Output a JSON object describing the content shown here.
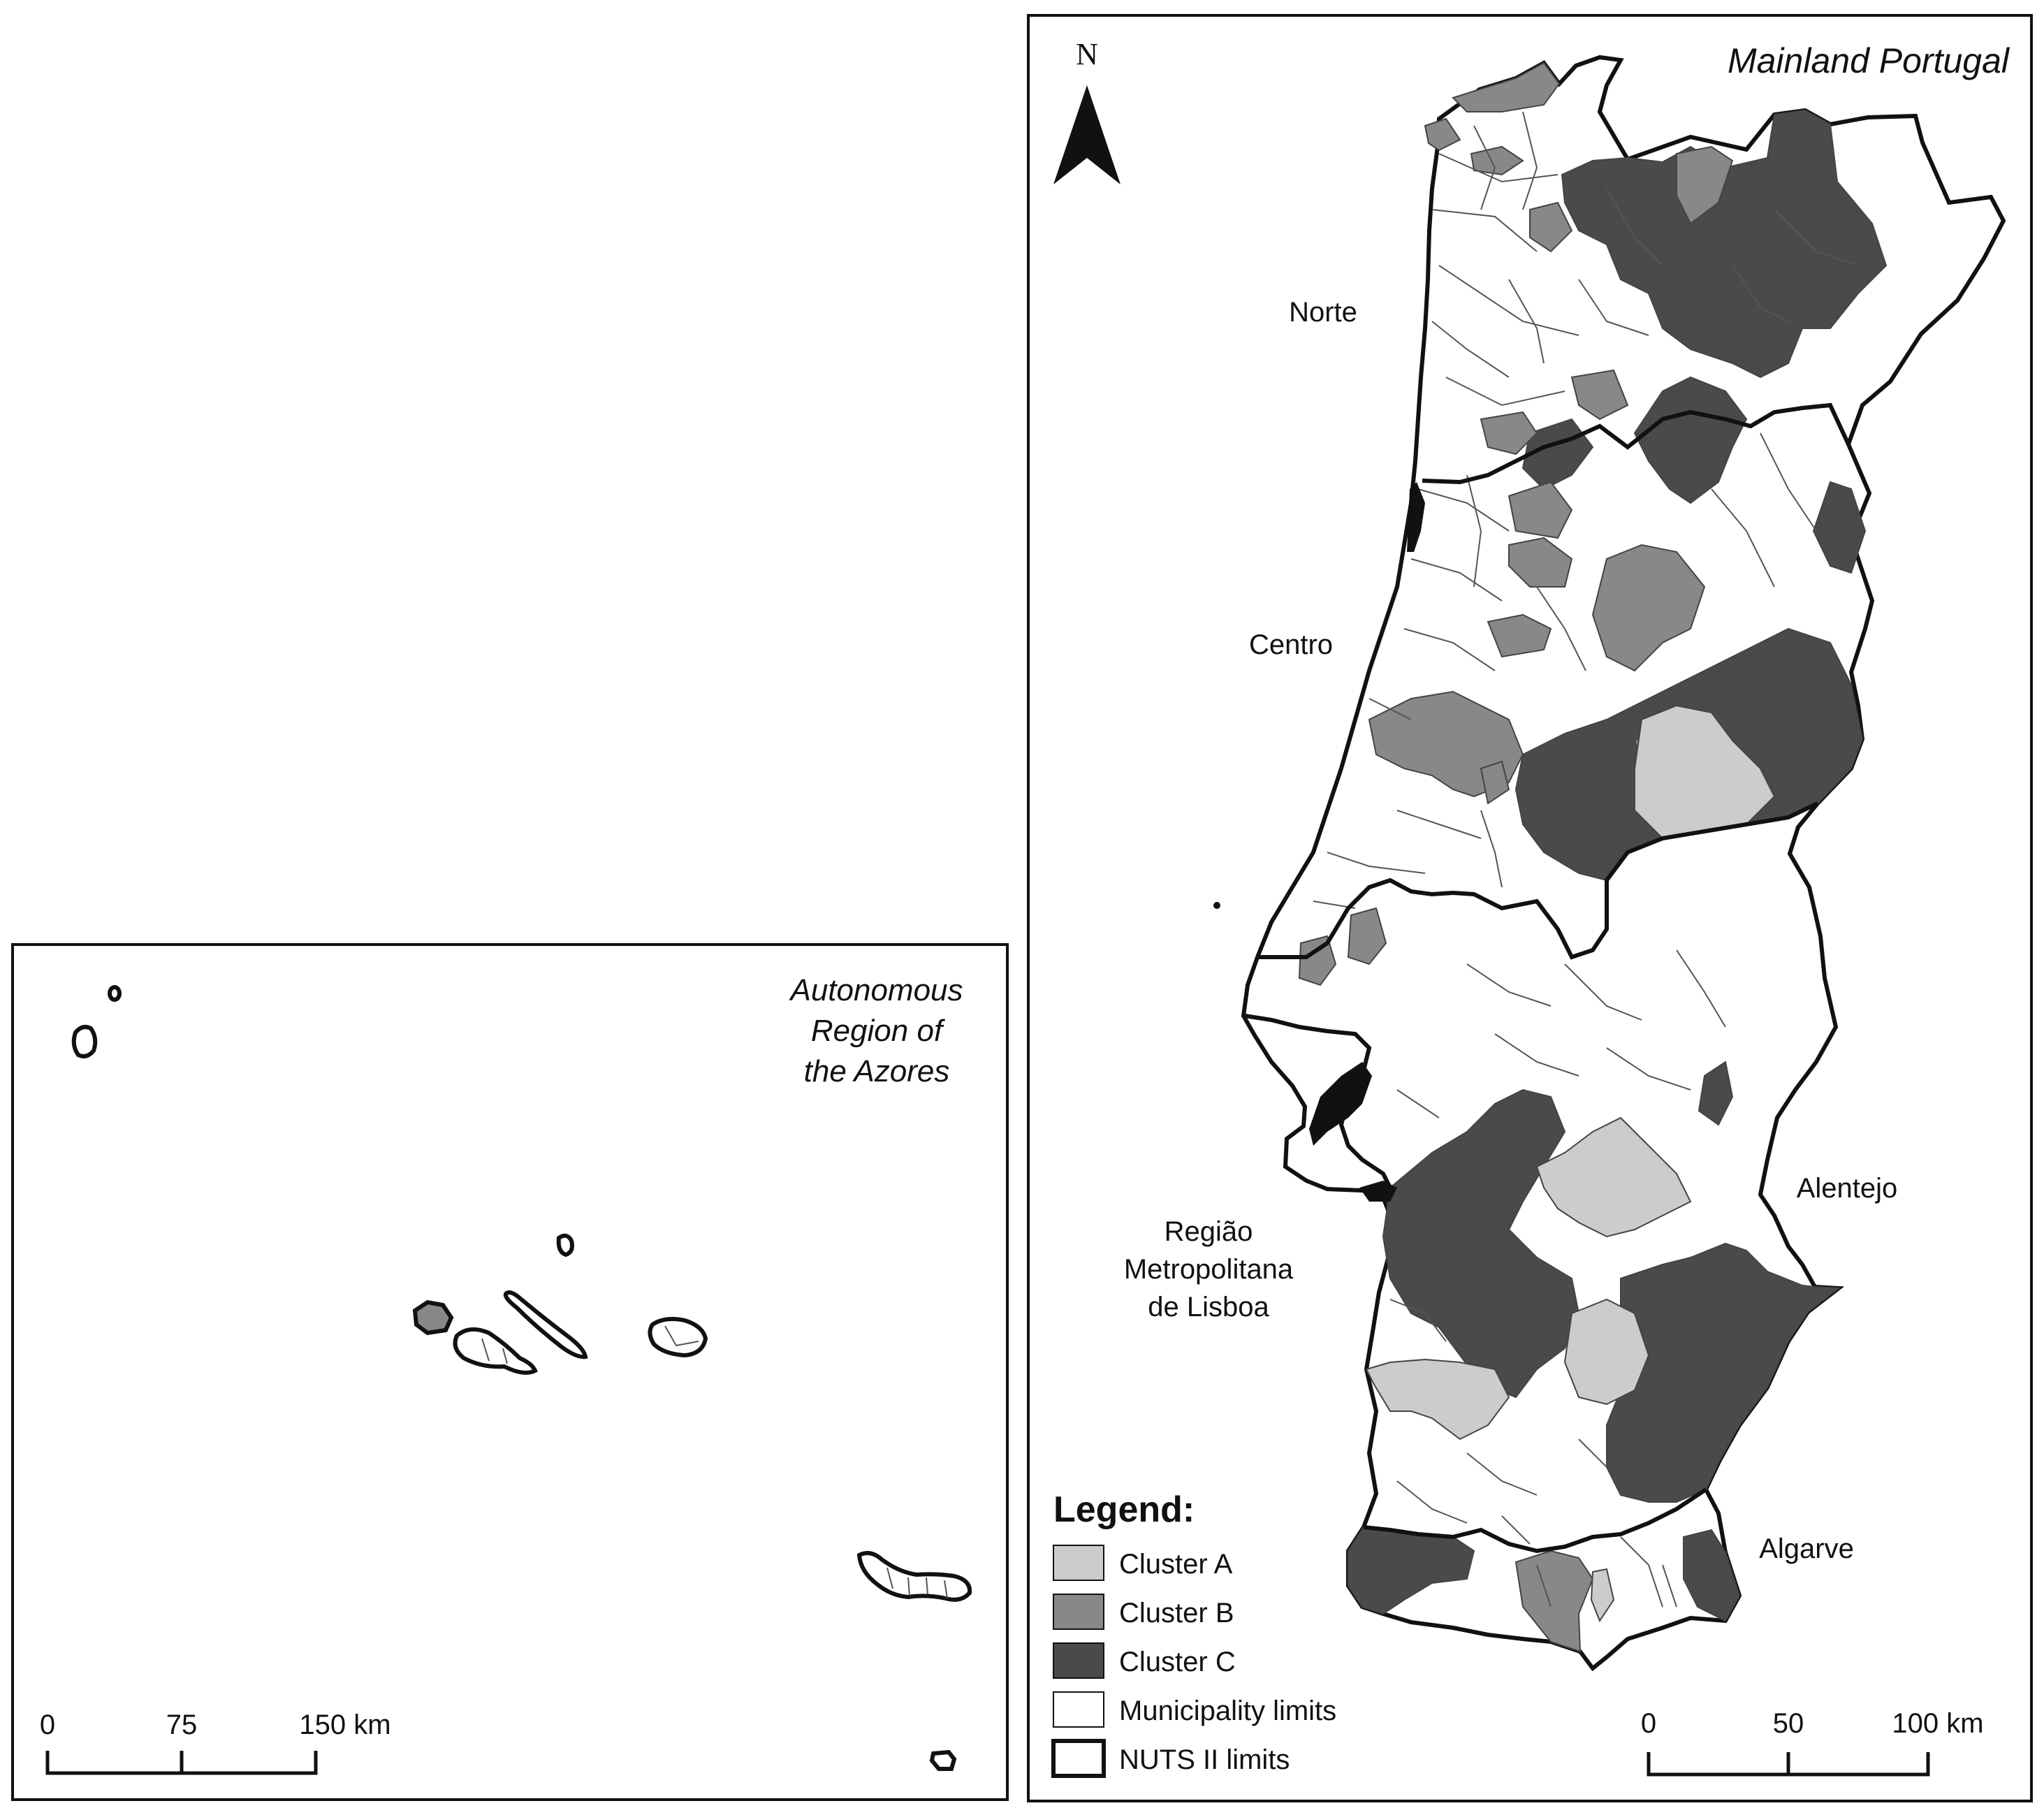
{
  "azores_panel": {
    "title_lines": [
      "Autonomous",
      "Region of",
      "the Azores"
    ],
    "scale_labels": [
      "0",
      "75",
      "150 km"
    ]
  },
  "mainland_panel": {
    "title": "Mainland Portugal",
    "north_label": "N",
    "regions": {
      "norte": "Norte",
      "centro": "Centro",
      "lisboa_lines": [
        "Região",
        "Metropolitana",
        "de Lisboa"
      ],
      "alentejo": "Alentejo",
      "algarve": "Algarve"
    },
    "scale_labels": [
      "0",
      "50",
      "100 km"
    ]
  },
  "legend": {
    "title": "Legend:",
    "items": [
      {
        "label": "Cluster A",
        "color": "#cccccc"
      },
      {
        "label": "Cluster B",
        "color": "#888888"
      },
      {
        "label": "Cluster C",
        "color": "#4a4a4a"
      },
      {
        "label": "Municipality limits",
        "color": "#ffffff"
      },
      {
        "label": "NUTS II limits",
        "color": "#ffffff"
      }
    ]
  },
  "colors": {
    "cluster_a": "#cccccc",
    "cluster_b": "#888888",
    "cluster_c": "#4a4a4a",
    "border": "#111111"
  },
  "icons": [
    "north-arrow-icon"
  ]
}
